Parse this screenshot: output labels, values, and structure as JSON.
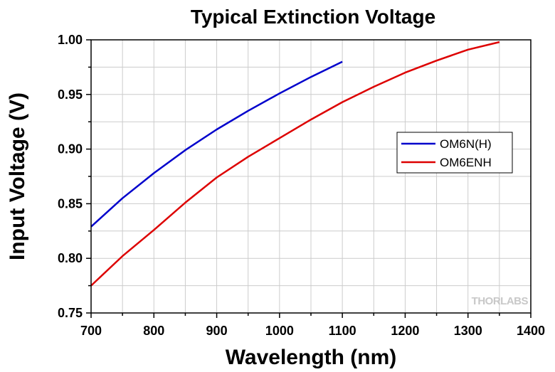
{
  "chart_data": {
    "type": "line",
    "title": "Typical Extinction Voltage",
    "xlabel": "Wavelength (nm)",
    "ylabel": "Input Voltage (V)",
    "xlim": [
      700,
      1400
    ],
    "ylim": [
      0.75,
      1.0
    ],
    "xticks": [
      "700",
      "800",
      "900",
      "1000",
      "1100",
      "1200",
      "1300",
      "1400"
    ],
    "yticks": [
      "0.75",
      "0.80",
      "0.85",
      "0.90",
      "0.95",
      "1.00"
    ],
    "xtick_values": [
      700,
      800,
      900,
      1000,
      1100,
      1200,
      1300,
      1400
    ],
    "ytick_values": [
      0.75,
      0.8,
      0.85,
      0.9,
      0.95,
      1.0
    ],
    "grid": true,
    "legend_position": "right",
    "series": [
      {
        "name": "OM6N(H)",
        "color": "#0000cc",
        "x": [
          700,
          750,
          800,
          850,
          900,
          950,
          1000,
          1050,
          1100
        ],
        "y": [
          0.829,
          0.855,
          0.878,
          0.899,
          0.918,
          0.935,
          0.951,
          0.966,
          0.98
        ]
      },
      {
        "name": "OM6ENH",
        "color": "#dd0000",
        "x": [
          700,
          750,
          800,
          850,
          900,
          950,
          1000,
          1050,
          1100,
          1150,
          1200,
          1250,
          1300,
          1350
        ],
        "y": [
          0.775,
          0.802,
          0.826,
          0.851,
          0.874,
          0.893,
          0.91,
          0.927,
          0.943,
          0.957,
          0.97,
          0.981,
          0.991,
          0.998
        ]
      }
    ]
  },
  "watermark": "THORLABS"
}
